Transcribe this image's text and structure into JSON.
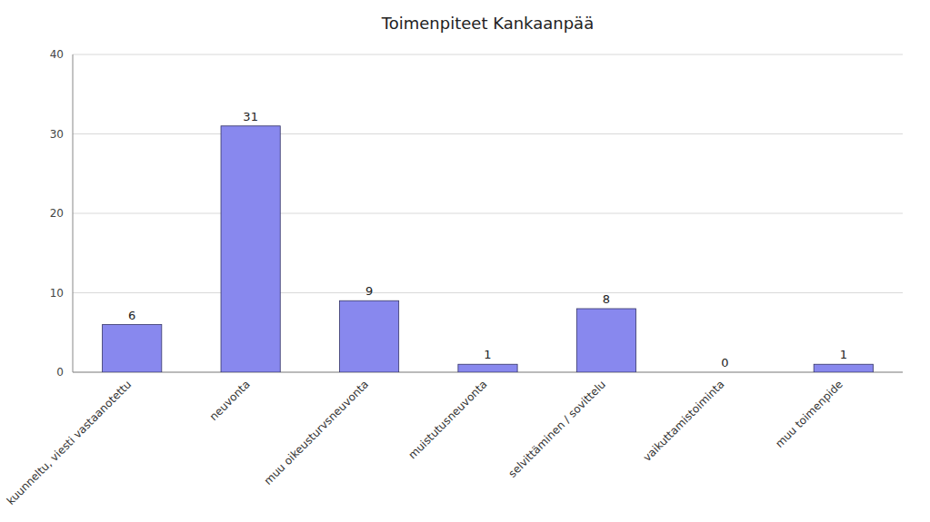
{
  "chart_data": {
    "type": "bar",
    "title": "Toimenpiteet Kankaanpää",
    "categories": [
      "kuunneltu, viesti vastaanotettu",
      "neuvonta",
      "muu oikeusturvsneuvonta",
      "muistutusneuvonta",
      "selvittäminen / sovittelu",
      "vaikuttamistoiminta",
      "muu toimenpide"
    ],
    "values": [
      6,
      31,
      9,
      1,
      8,
      0,
      1
    ],
    "color": "#8888ee",
    "ylim": [
      0,
      40
    ],
    "yticks": [
      0,
      10,
      20,
      30,
      40
    ],
    "grid": true,
    "data_labels": true
  }
}
